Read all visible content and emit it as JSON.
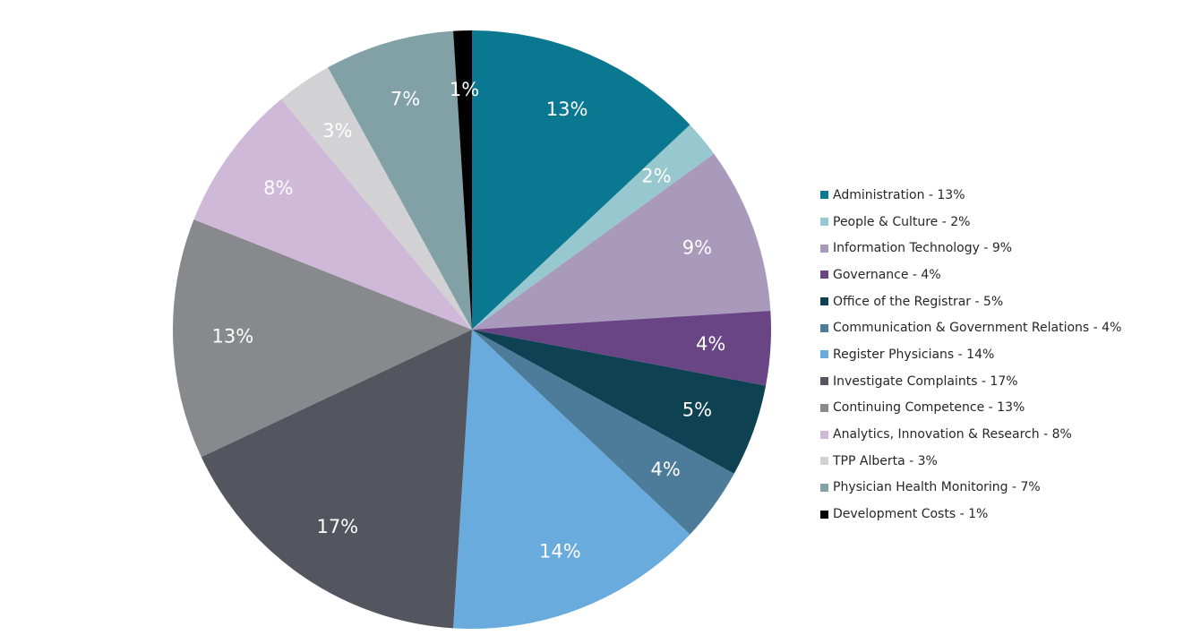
{
  "chart_data": {
    "type": "pie",
    "title": "",
    "slices": [
      {
        "label": "Administration",
        "value": 13,
        "value_label": "13%",
        "legend": "Administration - 13%",
        "color": "#0B7891"
      },
      {
        "label": "People & Culture",
        "value": 2,
        "value_label": "2%",
        "legend": "People & Culture - 2%",
        "color": "#98C8CF"
      },
      {
        "label": "Information Technology",
        "value": 9,
        "value_label": "9%",
        "legend": "Information Technology - 9%",
        "color": "#A99ABB"
      },
      {
        "label": "Governance",
        "value": 4,
        "value_label": "4%",
        "legend": "Governance - 4%",
        "color": "#694586"
      },
      {
        "label": "Office of the Registrar",
        "value": 5,
        "value_label": "5%",
        "legend": "Office of the Registrar - 5%",
        "color": "#0E4252"
      },
      {
        "label": "Communication & Government Relations",
        "value": 4,
        "value_label": "4%",
        "legend": "Communication & Government Relations - 4%",
        "color": "#4D7C9A"
      },
      {
        "label": "Register Physicians",
        "value": 14,
        "value_label": "14%",
        "legend": "Register Physicians - 14%",
        "color": "#68ABDC"
      },
      {
        "label": "Investigate Complaints",
        "value": 17,
        "value_label": "17%",
        "legend": "Investigate Complaints - 17%",
        "color": "#53565E"
      },
      {
        "label": "Continuing Competence",
        "value": 13,
        "value_label": "13%",
        "legend": "Continuing Competence - 13%",
        "color": "#88898C"
      },
      {
        "label": "Analytics, Innovation & Research",
        "value": 8,
        "value_label": "8%",
        "legend": "Analytics, Innovation & Research - 8%",
        "color": "#D0B8D8"
      },
      {
        "label": "TPP Alberta",
        "value": 3,
        "value_label": "3%",
        "legend": "TPP Alberta - 3%",
        "color": "#D2D2D4"
      },
      {
        "label": "Physician Health Monitoring",
        "value": 7,
        "value_label": "7%",
        "legend": "Physician Health Monitoring - 7%",
        "color": "#82A1A6"
      },
      {
        "label": "Development Costs",
        "value": 1,
        "value_label": "1%",
        "legend": "Development Costs - 1%",
        "color": "#000000"
      }
    ],
    "legend_position": "right",
    "start_angle_deg": 0,
    "direction": "clockwise"
  }
}
